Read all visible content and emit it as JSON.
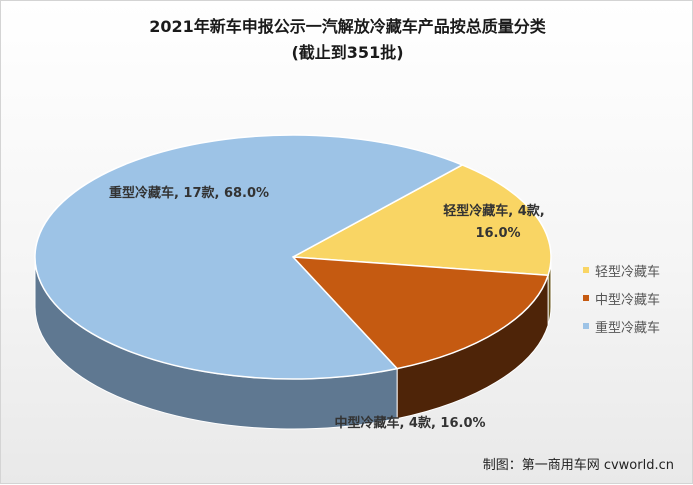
{
  "chart_data": {
    "type": "pie",
    "title": "2021年新车申报公示一汽解放冷藏车产品按总质量分类",
    "subtitle": "(截止到351批)",
    "slices": [
      {
        "name": "轻型冷藏车",
        "count": 4,
        "count_label": "4款",
        "percent": 16.0,
        "percent_label": "16.0%",
        "color": "#f9d564",
        "side_color": "#6b5a22"
      },
      {
        "name": "中型冷藏车",
        "count": 4,
        "count_label": "4款",
        "percent": 16.0,
        "percent_label": "16.0%",
        "color": "#c55a11",
        "side_color": "#4e2408"
      },
      {
        "name": "重型冷藏车",
        "count": 17,
        "count_label": "17款",
        "percent": 68.0,
        "percent_label": "68.0%",
        "color": "#9dc3e6",
        "side_color": "#5f7891"
      }
    ],
    "legend": {
      "position": "right",
      "items": [
        "轻型冷藏车",
        "中型冷藏车",
        "重型冷藏车"
      ]
    },
    "data_labels": {
      "light": [
        "轻型冷藏车, 4款,",
        "16.0%"
      ],
      "medium": "中型冷藏车, 4款, 16.0%",
      "heavy": "重型冷藏车, 17款, 68.0%"
    }
  },
  "source": "制图：第一商用车网 cvworld.cn"
}
